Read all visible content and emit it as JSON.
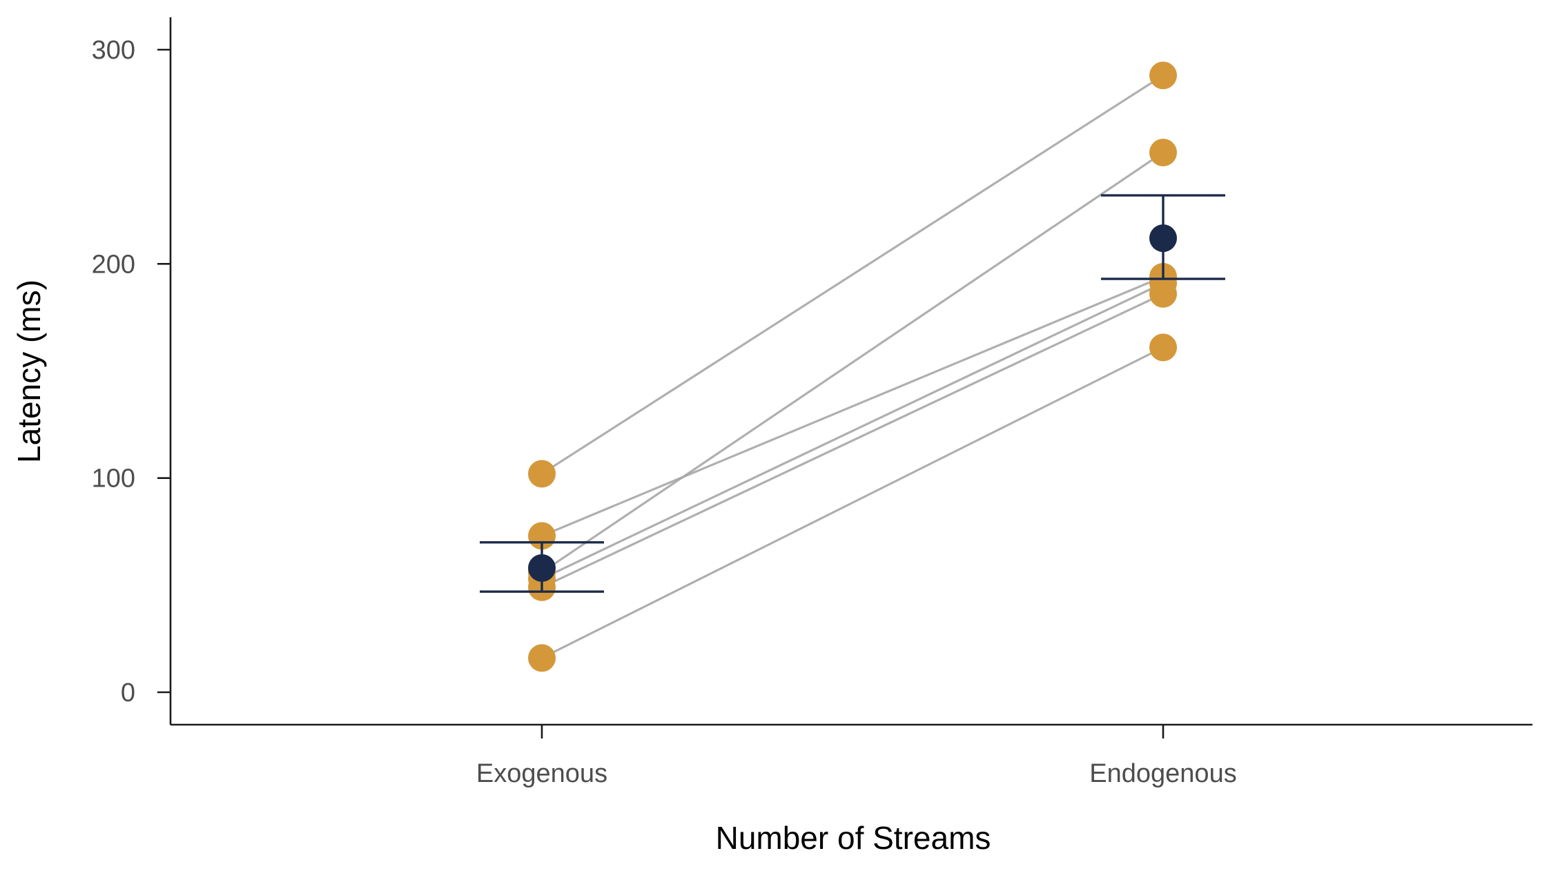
{
  "chart_data": {
    "type": "scatter",
    "title": "",
    "xlabel": "Number of Streams",
    "ylabel": "Latency (ms)",
    "categories": [
      "Exogenous",
      "Endogenous"
    ],
    "ylim": [
      -15,
      315
    ],
    "yticks": [
      0,
      100,
      200,
      300
    ],
    "grid": false,
    "legend": "none",
    "subjects": [
      {
        "values": [
          102,
          288
        ]
      },
      {
        "values": [
          73,
          194
        ]
      },
      {
        "values": [
          56,
          252
        ]
      },
      {
        "values": [
          53,
          191
        ]
      },
      {
        "values": [
          49,
          186
        ]
      },
      {
        "values": [
          16,
          161
        ]
      }
    ],
    "summary": {
      "means": [
        58,
        212
      ],
      "error_low": [
        47,
        193
      ],
      "error_high": [
        70,
        232
      ]
    },
    "colors": {
      "points": "#D4983A",
      "mean": "#1B2A4A",
      "lines": "#A6A6A6",
      "axis": "#1A1A1A"
    }
  }
}
